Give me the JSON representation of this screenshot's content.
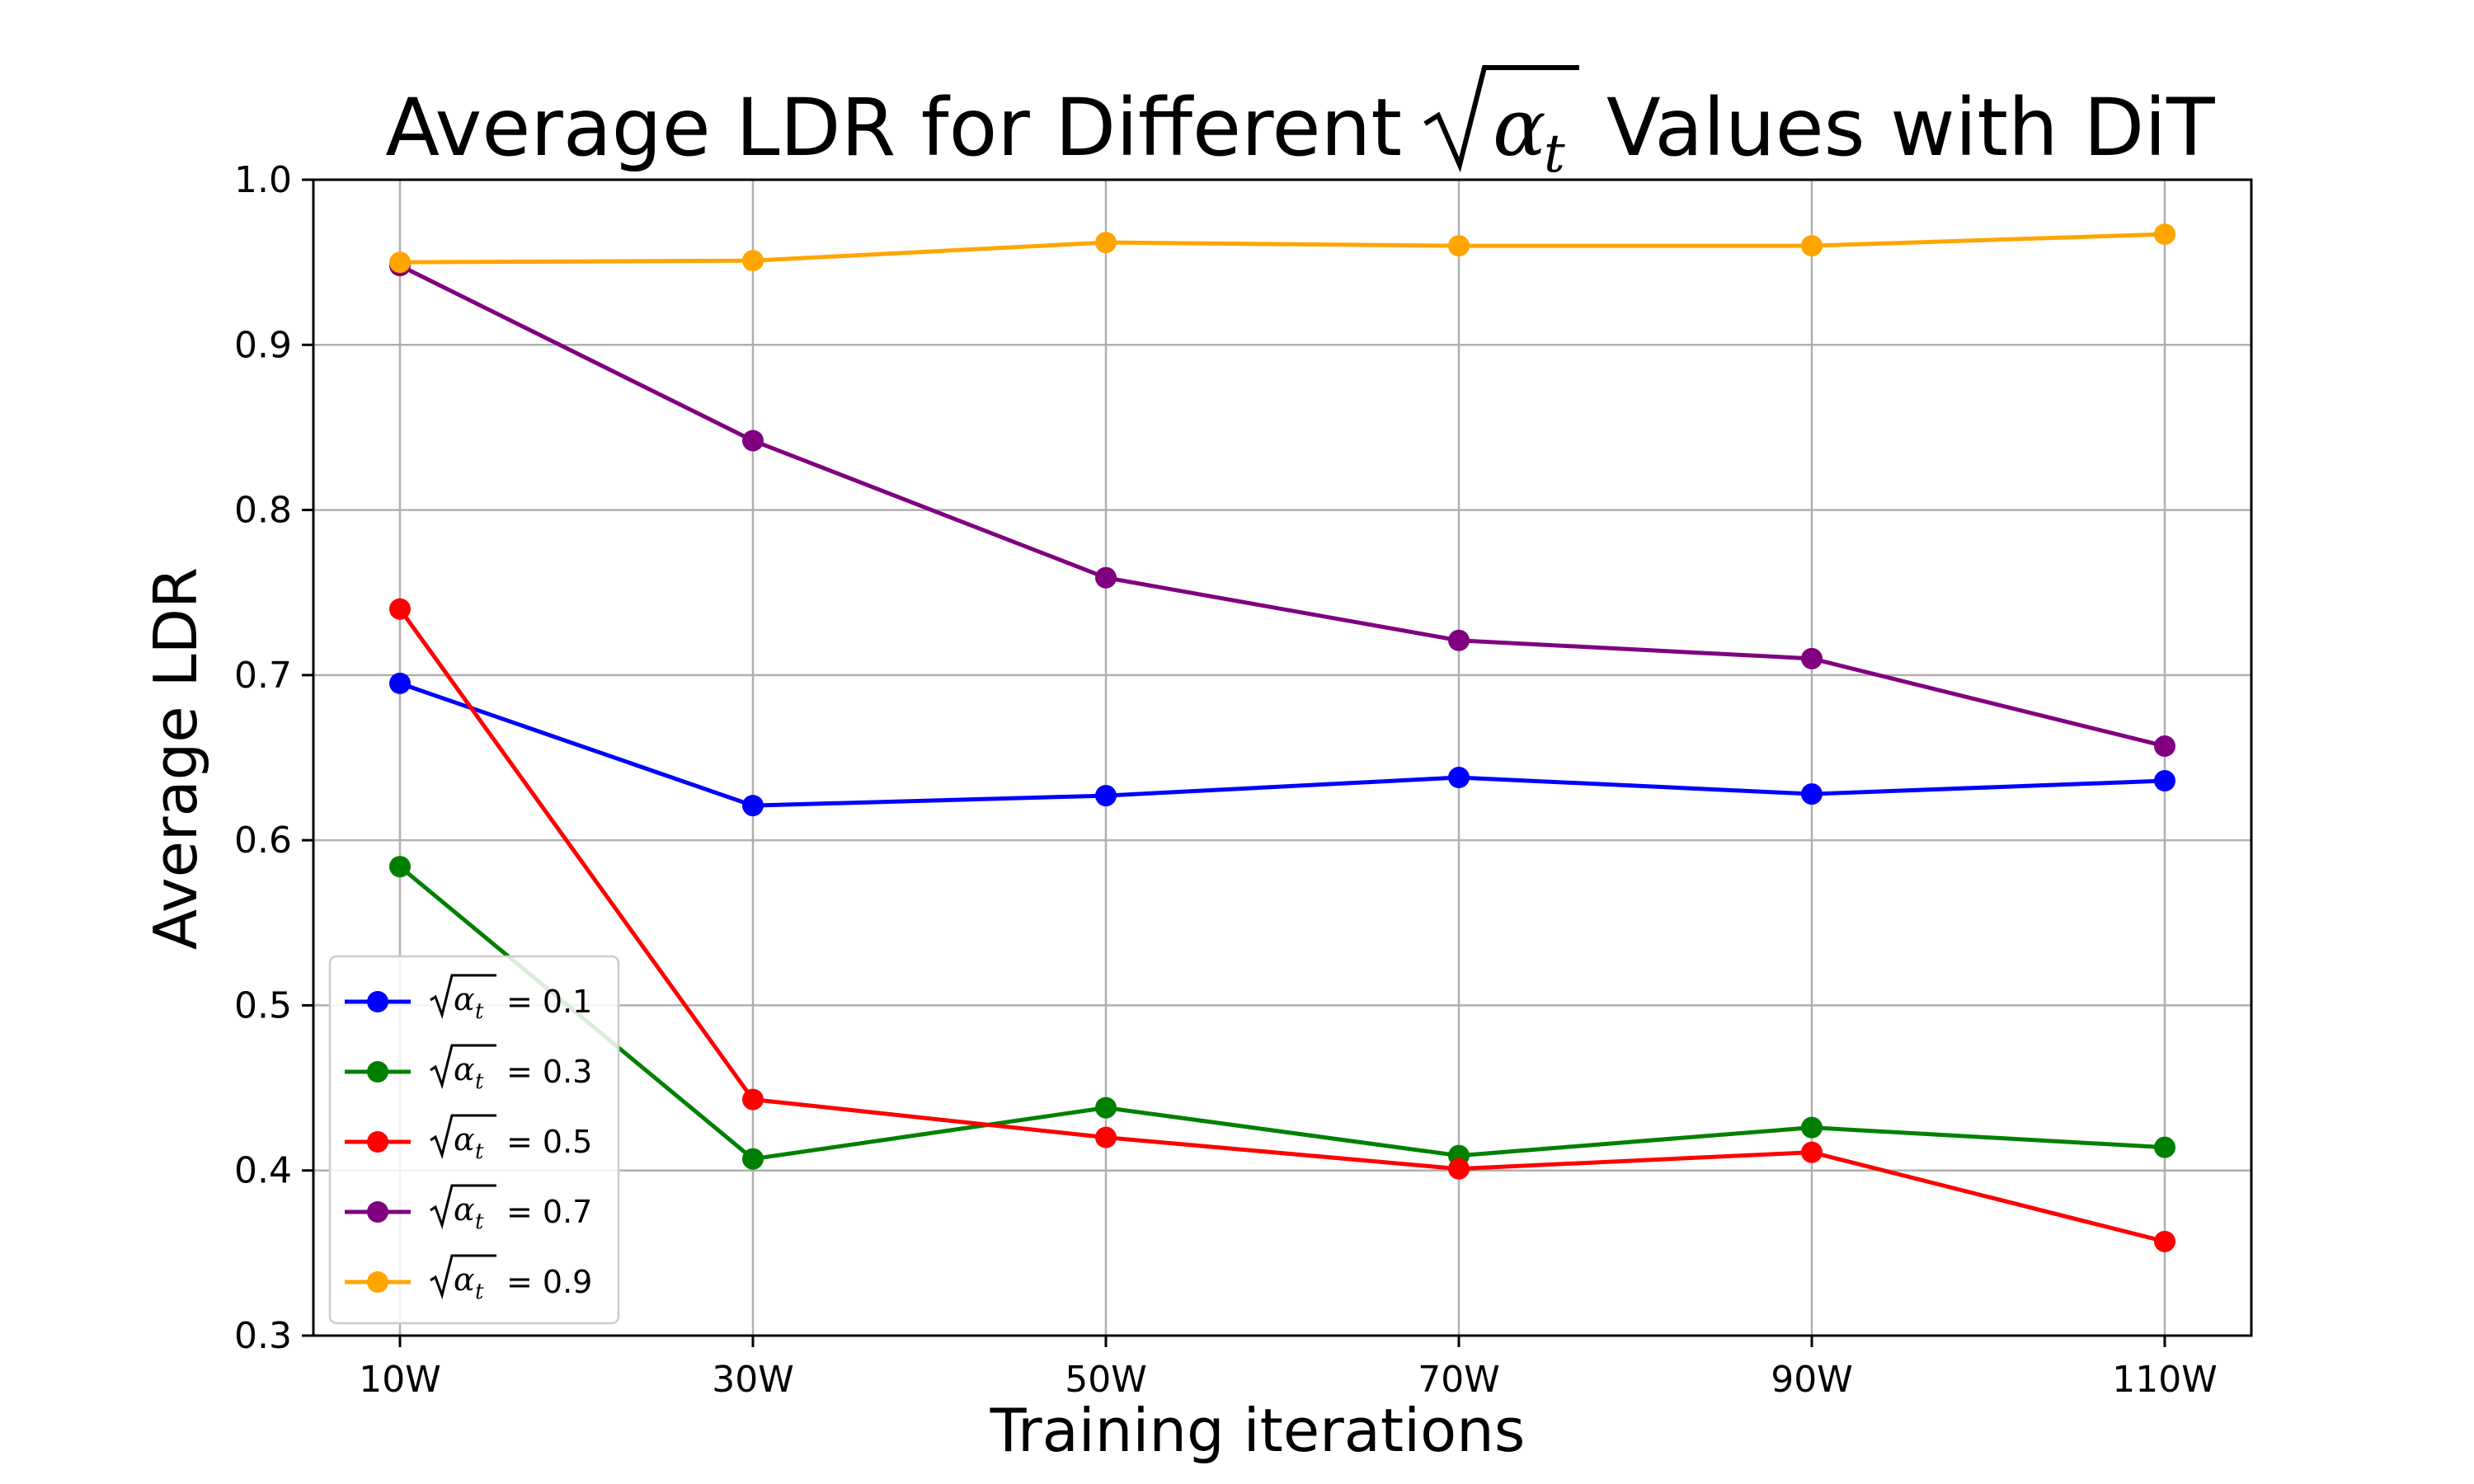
{
  "chart_data": {
    "type": "line",
    "title_prefix": "Average LDR for Different",
    "title_symbol": "α",
    "title_subscript": "t",
    "title_suffix": "Values with DiT",
    "xlabel": "Training iterations",
    "ylabel": "Average LDR",
    "categories": [
      "10W",
      "30W",
      "50W",
      "70W",
      "90W",
      "110W"
    ],
    "ylim": [
      0.3,
      1.0
    ],
    "yticks": [
      "0.3",
      "0.4",
      "0.5",
      "0.6",
      "0.7",
      "0.8",
      "0.9",
      "1.0"
    ],
    "grid": true,
    "legend_position": "lower-left",
    "legend_symbol": "α",
    "legend_subscript": "t",
    "series": [
      {
        "name": "= 0.1",
        "color": "#0000ff",
        "values": [
          0.695,
          0.621,
          0.627,
          0.638,
          0.628,
          0.636
        ]
      },
      {
        "name": "= 0.3",
        "color": "#008000",
        "values": [
          0.584,
          0.407,
          0.438,
          0.409,
          0.426,
          0.414
        ]
      },
      {
        "name": "= 0.5",
        "color": "#ff0000",
        "values": [
          0.74,
          0.443,
          0.42,
          0.401,
          0.411,
          0.357
        ]
      },
      {
        "name": "= 0.7",
        "color": "#800080",
        "values": [
          0.948,
          0.842,
          0.759,
          0.721,
          0.71,
          0.657
        ]
      },
      {
        "name": "= 0.9",
        "color": "#ffa500",
        "values": [
          0.95,
          0.951,
          0.962,
          0.96,
          0.96,
          0.967
        ]
      }
    ]
  }
}
